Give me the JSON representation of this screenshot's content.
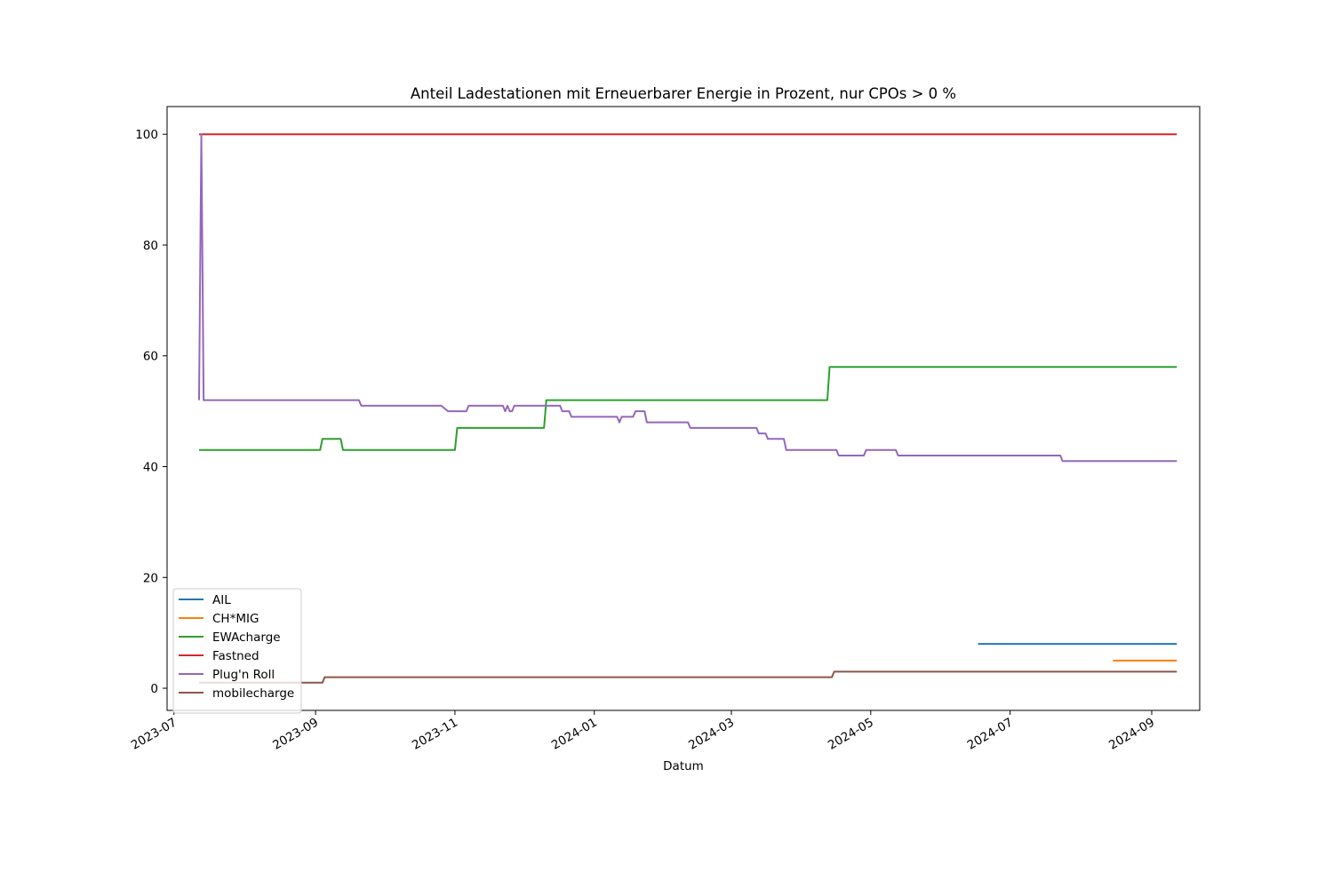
{
  "chart_data": {
    "type": "line",
    "title": "Anteil Ladestationen mit Erneuerbarer Energie in Prozent, nur CPOs > 0 %",
    "xlabel": "Datum",
    "ylabel": "",
    "x_type": "date",
    "xlim": [
      "2023-06-28",
      "2024-09-22"
    ],
    "ylim": [
      -4,
      105
    ],
    "x_ticks": [
      "2023-07",
      "2023-09",
      "2023-11",
      "2024-01",
      "2024-03",
      "2024-05",
      "2024-07",
      "2024-09"
    ],
    "y_ticks": [
      0,
      20,
      40,
      60,
      80,
      100
    ],
    "grid": false,
    "legend_position": "lower-left",
    "series": [
      {
        "name": "AIL",
        "color": "#1f77b4",
        "points": [
          [
            "2024-06-17",
            8
          ],
          [
            "2024-09-12",
            8
          ]
        ]
      },
      {
        "name": "CH*MIG",
        "color": "#ff7f0e",
        "points": [
          [
            "2024-08-15",
            5
          ],
          [
            "2024-09-12",
            5
          ]
        ]
      },
      {
        "name": "EWAcharge",
        "color": "#2ca02c",
        "points": [
          [
            "2023-07-12",
            43
          ],
          [
            "2023-09-03",
            43
          ],
          [
            "2023-09-04",
            45
          ],
          [
            "2023-09-12",
            45
          ],
          [
            "2023-09-13",
            43
          ],
          [
            "2023-11-01",
            43
          ],
          [
            "2023-11-02",
            47
          ],
          [
            "2023-12-10",
            47
          ],
          [
            "2023-12-11",
            52
          ],
          [
            "2024-04-12",
            52
          ],
          [
            "2024-04-13",
            58
          ],
          [
            "2024-09-12",
            58
          ]
        ]
      },
      {
        "name": "Fastned",
        "color": "#d62728",
        "points": [
          [
            "2023-07-12",
            100
          ],
          [
            "2024-09-12",
            100
          ]
        ]
      },
      {
        "name": "Plug'n Roll",
        "color": "#9467bd",
        "points": [
          [
            "2023-07-12",
            52
          ],
          [
            "2023-07-13",
            100
          ],
          [
            "2023-07-14",
            52
          ],
          [
            "2023-09-20",
            52
          ],
          [
            "2023-09-21",
            51
          ],
          [
            "2023-10-26",
            51
          ],
          [
            "2023-10-29",
            50
          ],
          [
            "2023-11-06",
            50
          ],
          [
            "2023-11-07",
            51
          ],
          [
            "2023-11-22",
            51
          ],
          [
            "2023-11-23",
            50
          ],
          [
            "2023-11-24",
            51
          ],
          [
            "2023-11-25",
            50
          ],
          [
            "2023-11-26",
            50
          ],
          [
            "2023-11-27",
            51
          ],
          [
            "2023-12-17",
            51
          ],
          [
            "2023-12-18",
            50
          ],
          [
            "2023-12-21",
            50
          ],
          [
            "2023-12-22",
            49
          ],
          [
            "2024-01-11",
            49
          ],
          [
            "2024-01-12",
            48
          ],
          [
            "2024-01-13",
            49
          ],
          [
            "2024-01-18",
            49
          ],
          [
            "2024-01-19",
            50
          ],
          [
            "2024-01-23",
            50
          ],
          [
            "2024-01-24",
            48
          ],
          [
            "2024-02-11",
            48
          ],
          [
            "2024-02-12",
            47
          ],
          [
            "2024-03-12",
            47
          ],
          [
            "2024-03-13",
            46
          ],
          [
            "2024-03-16",
            46
          ],
          [
            "2024-03-17",
            45
          ],
          [
            "2024-03-24",
            45
          ],
          [
            "2024-03-25",
            43
          ],
          [
            "2024-04-16",
            43
          ],
          [
            "2024-04-17",
            42
          ],
          [
            "2024-04-28",
            42
          ],
          [
            "2024-04-29",
            43
          ],
          [
            "2024-05-12",
            43
          ],
          [
            "2024-05-13",
            42
          ],
          [
            "2024-07-23",
            42
          ],
          [
            "2024-07-24",
            41
          ],
          [
            "2024-09-12",
            41
          ]
        ]
      },
      {
        "name": "mobilecharge",
        "color": "#8c564b",
        "points": [
          [
            "2023-07-12",
            1
          ],
          [
            "2023-09-04",
            1
          ],
          [
            "2023-09-05",
            2
          ],
          [
            "2024-04-14",
            2
          ],
          [
            "2024-04-15",
            3
          ],
          [
            "2024-09-12",
            3
          ]
        ]
      }
    ]
  }
}
